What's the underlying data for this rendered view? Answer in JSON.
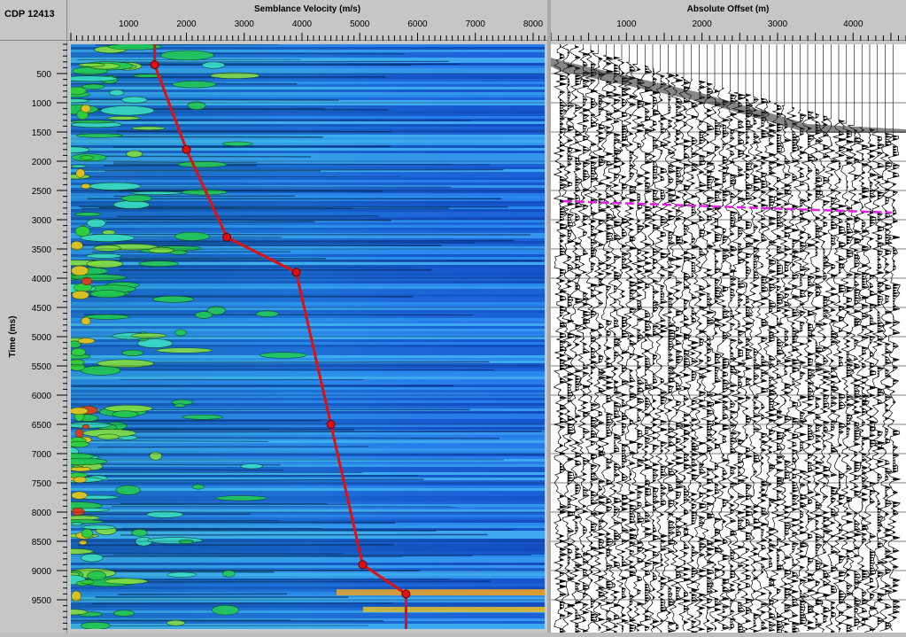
{
  "cdp_label": "CDP 12413",
  "velocity_panel": {
    "title": "Semblance Velocity (m/s)",
    "ticks": [
      "1000",
      "2000",
      "3000",
      "4000",
      "5000",
      "6000",
      "7000",
      "8000"
    ],
    "tick_values": [
      1000,
      2000,
      3000,
      4000,
      5000,
      6000,
      7000,
      8000
    ],
    "range": [
      0,
      8200
    ]
  },
  "offset_panel": {
    "title": "Absolute Offset (m)",
    "ticks": [
      "1000",
      "2000",
      "3000",
      "4000"
    ],
    "tick_values": [
      1000,
      2000,
      3000,
      4000
    ],
    "range": [
      0,
      4700
    ]
  },
  "time_axis": {
    "label": "Time (ms)",
    "ticks": [
      "500",
      "1000",
      "1500",
      "2000",
      "2500",
      "3000",
      "3500",
      "4000",
      "4500",
      "5000",
      "5500",
      "6000",
      "6500",
      "7000",
      "7500",
      "8000",
      "8500",
      "9000",
      "9500"
    ],
    "tick_values": [
      500,
      1000,
      1500,
      2000,
      2500,
      3000,
      3500,
      4000,
      4500,
      5000,
      5500,
      6000,
      6500,
      7000,
      7500,
      8000,
      8500,
      9000,
      9500
    ],
    "range": [
      0,
      10000
    ]
  },
  "velocity_picks": [
    {
      "time": 0,
      "velocity": 1450
    },
    {
      "time": 350,
      "velocity": 1450
    },
    {
      "time": 1800,
      "velocity": 2000
    },
    {
      "time": 3300,
      "velocity": 2700
    },
    {
      "time": 3900,
      "velocity": 3900
    },
    {
      "time": 6500,
      "velocity": 4500
    },
    {
      "time": 8900,
      "velocity": 5050
    },
    {
      "time": 9400,
      "velocity": 5800
    },
    {
      "time": 10000,
      "velocity": 5800
    }
  ],
  "colors": {
    "pick_line": "#e01010",
    "semblance_bg": "#1e6fe0",
    "pick_overlay": "#e020e0"
  }
}
